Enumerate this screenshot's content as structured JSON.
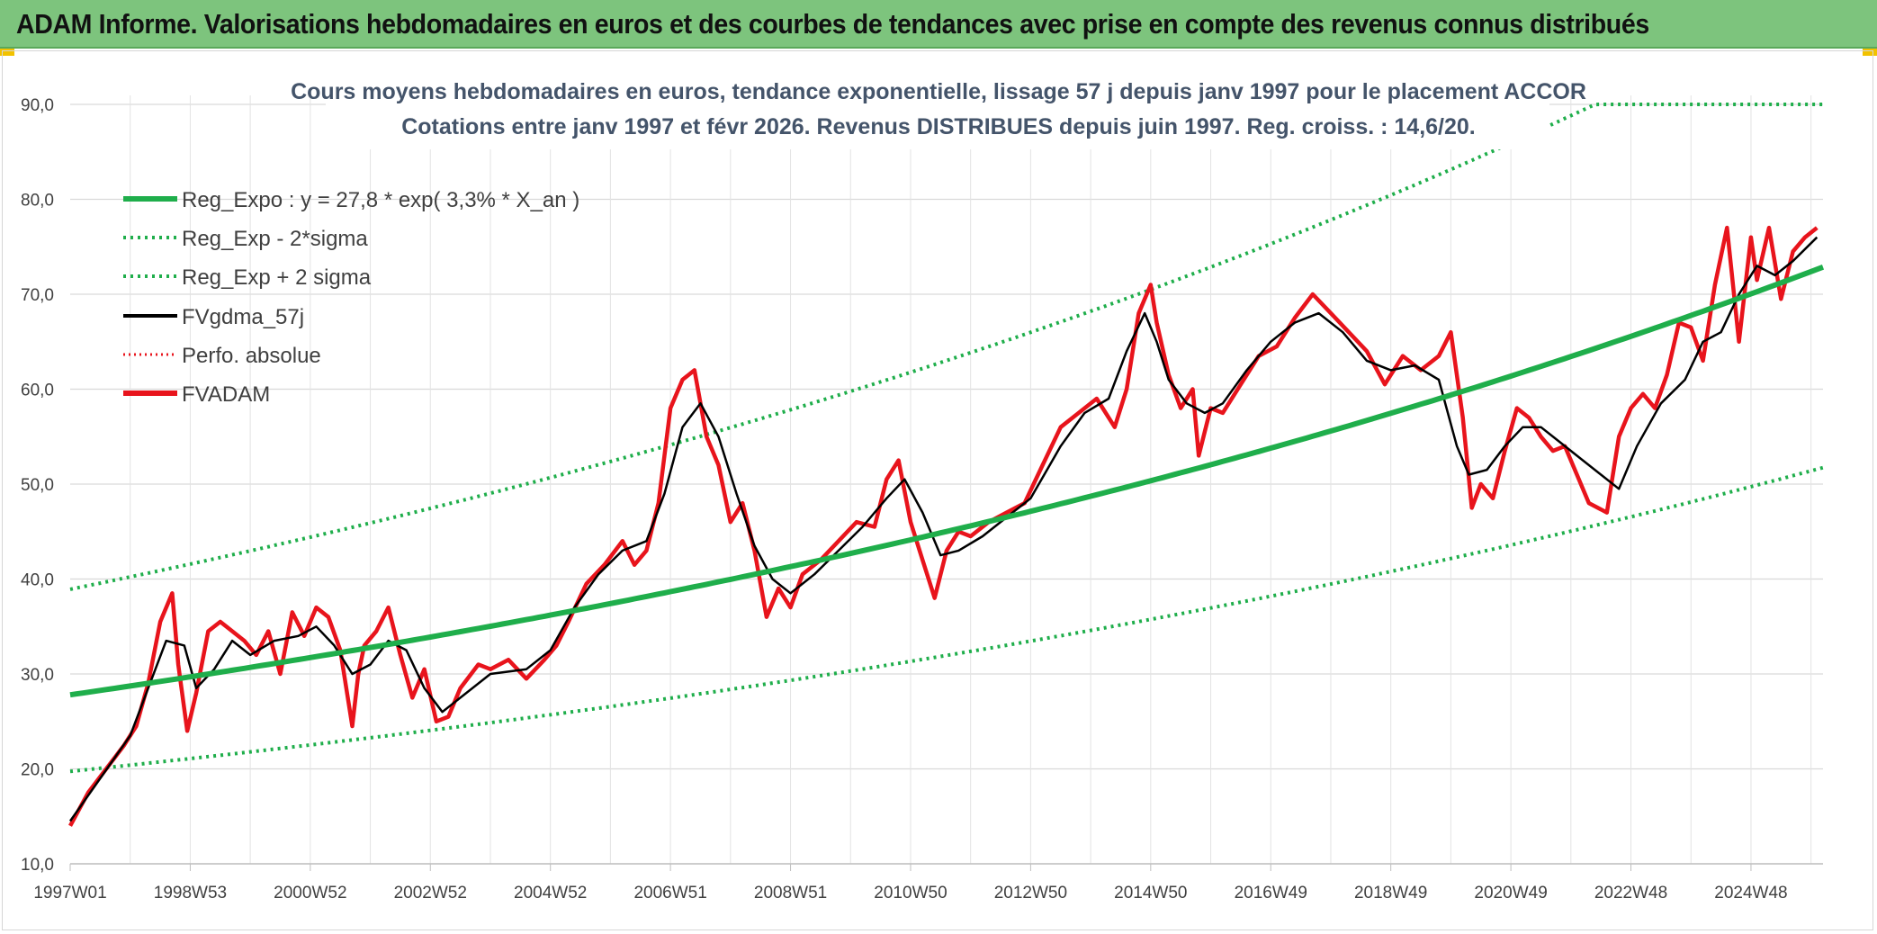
{
  "header": {
    "title": "ADAM Informe. Valorisations hebdomadaires en euros et des courbes de tendances avec prise en compte des revenus connus distribués"
  },
  "chart_data": {
    "type": "line",
    "title_line1": "Cours moyens hebdomadaires en euros, tendance exponentielle, lissage 57 j depuis janv 1997 pour le placement ACCOR",
    "title_line2": "Cotations entre janv 1997 et févr 2026. Revenus DISTRIBUES depuis juin 1997. Reg. croiss. : 14,6/20.",
    "ylim": [
      10,
      90
    ],
    "yticks": [
      "10,0",
      "20,0",
      "30,0",
      "40,0",
      "50,0",
      "60,0",
      "70,0",
      "80,0",
      "90,0"
    ],
    "xlim": [
      1997.0,
      2026.2
    ],
    "xtick_labels": [
      "1997W01",
      "1998W53",
      "2000W52",
      "2002W52",
      "2004W52",
      "2006W51",
      "2008W51",
      "2010W50",
      "2012W50",
      "2014W50",
      "2016W49",
      "2018W49",
      "2020W49",
      "2022W48",
      "2024W48"
    ],
    "xtick_years": [
      1997.0,
      1999.0,
      2001.0,
      2003.0,
      2005.0,
      2007.0,
      2009.0,
      2011.0,
      2013.0,
      2015.0,
      2017.0,
      2019.0,
      2021.0,
      2023.0,
      2025.0
    ],
    "legend": [
      {
        "label": "Reg_Expo : y = 27,8 * exp( 3,3% *  X_an )",
        "color": "#1fae4b",
        "style": "solid-thick"
      },
      {
        "label": "Reg_Exp - 2*sigma",
        "color": "#1fae4b",
        "style": "dotted"
      },
      {
        "label": "Reg_Exp + 2 sigma",
        "color": "#1fae4b",
        "style": "dotted"
      },
      {
        "label": "FVgdma_57j",
        "color": "#000000",
        "style": "solid"
      },
      {
        "label": "Perfo. absolue",
        "color": "#e8141c",
        "style": "dotted"
      },
      {
        "label": "FVADAM",
        "color": "#e8141c",
        "style": "solid-thick"
      }
    ],
    "legend_position": "top-left",
    "regression": {
      "a": 27.8,
      "rate": 0.033,
      "x0": 1997.0,
      "sigma_band_low_factor": 0.71,
      "sigma_band_high_factor": 1.4,
      "cap": 90
    },
    "series": [
      {
        "name": "FVADAM",
        "x": [
          1997.0,
          1997.3,
          1997.6,
          1997.9,
          1998.1,
          1998.3,
          1998.5,
          1998.7,
          1998.8,
          1998.95,
          1999.1,
          1999.3,
          1999.5,
          1999.7,
          1999.9,
          2000.1,
          2000.3,
          2000.5,
          2000.7,
          2000.9,
          2001.1,
          2001.3,
          2001.5,
          2001.7,
          2001.8,
          2001.9,
          2002.1,
          2002.3,
          2002.5,
          2002.7,
          2002.9,
          2003.1,
          2003.3,
          2003.5,
          2003.8,
          2004.0,
          2004.3,
          2004.6,
          2004.9,
          2005.1,
          2005.3,
          2005.6,
          2005.9,
          2006.2,
          2006.4,
          2006.6,
          2006.8,
          2007.0,
          2007.2,
          2007.4,
          2007.6,
          2007.8,
          2008.0,
          2008.2,
          2008.4,
          2008.6,
          2008.8,
          2009.0,
          2009.2,
          2009.5,
          2009.8,
          2010.1,
          2010.4,
          2010.6,
          2010.8,
          2011.0,
          2011.2,
          2011.4,
          2011.6,
          2011.8,
          2012.0,
          2012.3,
          2012.6,
          2012.9,
          2013.2,
          2013.5,
          2013.8,
          2014.1,
          2014.4,
          2014.6,
          2014.8,
          2015.0,
          2015.1,
          2015.3,
          2015.5,
          2015.7,
          2015.8,
          2016.0,
          2016.2,
          2016.5,
          2016.8,
          2017.1,
          2017.4,
          2017.7,
          2018.0,
          2018.3,
          2018.6,
          2018.9,
          2019.2,
          2019.5,
          2019.8,
          2020.0,
          2020.2,
          2020.35,
          2020.5,
          2020.7,
          2020.9,
          2021.1,
          2021.3,
          2021.5,
          2021.7,
          2021.9,
          2022.1,
          2022.3,
          2022.6,
          2022.8,
          2023.0,
          2023.2,
          2023.4,
          2023.6,
          2023.8,
          2024.0,
          2024.2,
          2024.4,
          2024.6,
          2024.8,
          2025.0,
          2025.1,
          2025.3,
          2025.5,
          2025.7,
          2025.9,
          2026.1
        ],
        "values": [
          14.0,
          17.5,
          20.0,
          22.5,
          24.5,
          29.0,
          35.5,
          38.5,
          31.0,
          24.0,
          28.0,
          34.5,
          35.5,
          34.5,
          33.5,
          32.0,
          34.5,
          30.0,
          36.5,
          34.0,
          37.0,
          36.0,
          32.5,
          24.5,
          30.0,
          33.0,
          34.5,
          37.0,
          32.0,
          27.5,
          30.5,
          25.0,
          25.5,
          28.5,
          31.0,
          30.5,
          31.5,
          29.5,
          31.5,
          33.0,
          35.5,
          39.5,
          41.5,
          44.0,
          41.5,
          43.0,
          48.0,
          58.0,
          61.0,
          62.0,
          55.0,
          52.0,
          46.0,
          48.0,
          43.0,
          36.0,
          39.0,
          37.0,
          40.5,
          42.0,
          44.0,
          46.0,
          45.5,
          50.5,
          52.5,
          46.0,
          42.0,
          38.0,
          43.0,
          45.0,
          44.5,
          46.0,
          47.0,
          48.0,
          52.0,
          56.0,
          57.5,
          59.0,
          56.0,
          60.0,
          68.0,
          71.0,
          67.0,
          61.5,
          58.0,
          60.0,
          53.0,
          58.0,
          57.5,
          60.5,
          63.5,
          64.5,
          67.5,
          70.0,
          68.0,
          66.0,
          64.0,
          60.5,
          63.5,
          62.0,
          63.5,
          66.0,
          57.0,
          47.5,
          50.0,
          48.5,
          53.5,
          58.0,
          57.0,
          55.0,
          53.5,
          54.0,
          51.0,
          48.0,
          47.0,
          55.0,
          58.0,
          59.5,
          58.0,
          61.5,
          67.0,
          66.5,
          63.0,
          71.0,
          77.0,
          65.0,
          76.0,
          71.5,
          77.0,
          69.5,
          74.5,
          76.0,
          77.0
        ],
        "color": "#e8141c"
      },
      {
        "name": "FVgdma_57j",
        "x": [
          1997.0,
          1997.5,
          1998.0,
          1998.3,
          1998.6,
          1998.9,
          1999.1,
          1999.4,
          1999.7,
          2000.0,
          2000.4,
          2000.8,
          2001.1,
          2001.4,
          2001.7,
          2002.0,
          2002.3,
          2002.6,
          2002.9,
          2003.2,
          2003.5,
          2004.0,
          2004.6,
          2005.0,
          2005.4,
          2005.8,
          2006.2,
          2006.6,
          2006.9,
          2007.2,
          2007.5,
          2007.8,
          2008.1,
          2008.4,
          2008.7,
          2009.0,
          2009.4,
          2009.8,
          2010.2,
          2010.6,
          2010.9,
          2011.2,
          2011.5,
          2011.8,
          2012.2,
          2012.6,
          2013.0,
          2013.5,
          2013.9,
          2014.3,
          2014.6,
          2014.9,
          2015.1,
          2015.3,
          2015.6,
          2015.9,
          2016.2,
          2016.6,
          2017.0,
          2017.4,
          2017.8,
          2018.2,
          2018.6,
          2019.0,
          2019.4,
          2019.8,
          2020.1,
          2020.3,
          2020.6,
          2020.9,
          2021.2,
          2021.5,
          2021.8,
          2022.1,
          2022.5,
          2022.8,
          2023.1,
          2023.5,
          2023.9,
          2024.2,
          2024.5,
          2024.8,
          2025.1,
          2025.4,
          2025.7,
          2026.1
        ],
        "values": [
          14.5,
          19.0,
          23.5,
          28.5,
          33.5,
          33.0,
          28.5,
          30.5,
          33.5,
          32.0,
          33.5,
          34.0,
          35.0,
          33.0,
          30.0,
          31.0,
          33.5,
          32.5,
          28.5,
          26.0,
          27.5,
          30.0,
          30.5,
          32.5,
          37.0,
          40.5,
          43.0,
          44.0,
          49.0,
          56.0,
          58.5,
          55.0,
          49.0,
          43.5,
          40.0,
          38.5,
          40.5,
          43.0,
          45.5,
          48.5,
          50.5,
          47.0,
          42.5,
          43.0,
          44.5,
          46.5,
          48.5,
          54.0,
          57.5,
          59.0,
          64.0,
          68.0,
          65.0,
          61.0,
          58.5,
          57.5,
          58.5,
          62.0,
          65.0,
          67.0,
          68.0,
          66.0,
          63.0,
          62.0,
          62.5,
          61.0,
          54.0,
          51.0,
          51.5,
          54.0,
          56.0,
          56.0,
          54.5,
          53.0,
          51.0,
          49.5,
          54.0,
          58.5,
          61.0,
          65.0,
          66.0,
          70.0,
          73.0,
          72.0,
          73.5,
          76.0
        ],
        "color": "#000000"
      }
    ]
  }
}
